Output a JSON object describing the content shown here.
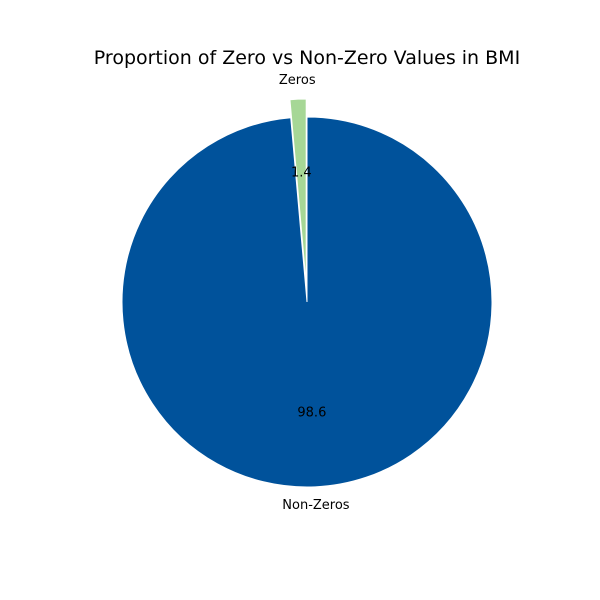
{
  "chart_data": {
    "type": "pie",
    "title": "Proportion of Zero vs Non-Zero Values in BMI",
    "slices": [
      {
        "label": "Zeros",
        "value": 1.4,
        "value_label": "1.4",
        "color": "#a6d796",
        "exploded": true
      },
      {
        "label": "Non-Zeros",
        "value": 98.6,
        "value_label": "98.6",
        "color": "#00529b",
        "exploded": false
      }
    ],
    "start_angle_deg": 90,
    "direction": "counterclockwise"
  }
}
